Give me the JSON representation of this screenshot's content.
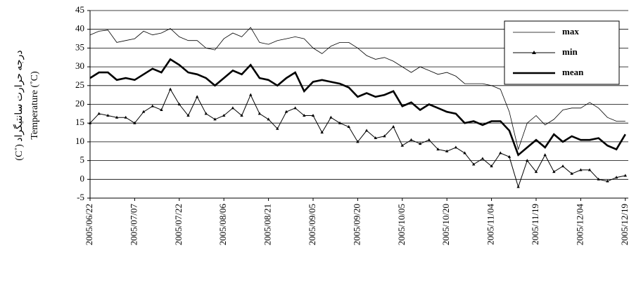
{
  "chart_data": {
    "type": "line",
    "y_label_lines": [
      "درجه حرارت سانتیگراد (˚C)",
      "Temperature (˚C)"
    ],
    "x": [
      "2005/06/22",
      "2005/06/25",
      "2005/06/28",
      "2005/07/01",
      "2005/07/04",
      "2005/07/07",
      "2005/07/10",
      "2005/07/13",
      "2005/07/16",
      "2005/07/19",
      "2005/07/22",
      "2005/07/25",
      "2005/07/28",
      "2005/07/31",
      "2005/08/03",
      "2005/08/06",
      "2005/08/09",
      "2005/08/12",
      "2005/08/15",
      "2005/08/18",
      "2005/08/21",
      "2005/08/24",
      "2005/08/27",
      "2005/08/30",
      "2005/09/02",
      "2005/09/05",
      "2005/09/08",
      "2005/09/11",
      "2005/09/14",
      "2005/09/17",
      "2005/09/20",
      "2005/09/23",
      "2005/09/26",
      "2005/09/29",
      "2005/10/02",
      "2005/10/05",
      "2005/10/08",
      "2005/10/11",
      "2005/10/14",
      "2005/10/17",
      "2005/10/20",
      "2005/10/23",
      "2005/10/26",
      "2005/10/29",
      "2005/11/01",
      "2005/11/04",
      "2005/11/07",
      "2005/11/10",
      "2005/11/13",
      "2005/11/16",
      "2005/11/19",
      "2005/11/22",
      "2005/11/25",
      "2005/11/28",
      "2005/12/01",
      "2005/12/04",
      "2005/12/07",
      "2005/12/10",
      "2005/12/13",
      "2005/12/16",
      "2005/12/19"
    ],
    "series": [
      {
        "name": "max",
        "color": "#000000",
        "values": [
          38.5,
          39.5,
          39.8,
          36.5,
          37,
          37.5,
          39.5,
          38.5,
          39,
          40.2,
          38,
          37,
          37,
          35,
          34.5,
          37.5,
          39,
          38,
          40.5,
          36.5,
          36,
          37,
          37.5,
          38,
          37.5,
          35,
          33.5,
          35.5,
          36.5,
          36.5,
          35,
          33,
          32,
          32.5,
          31.5,
          30,
          28.5,
          30,
          29,
          28,
          28.5,
          27.5,
          25.5,
          25.5,
          25.5,
          25,
          24,
          18,
          8,
          15,
          17,
          14.5,
          16,
          18.5,
          19,
          19,
          20.5,
          19,
          16.5,
          15.5,
          15.5
        ]
      },
      {
        "name": "min",
        "color": "#000000",
        "values": [
          15,
          17.5,
          17,
          16.5,
          16.5,
          15,
          18,
          19.5,
          18.5,
          24,
          20,
          17,
          22,
          17.5,
          16,
          17,
          19,
          17,
          22.5,
          17.5,
          16,
          13.5,
          18,
          19,
          17,
          17,
          12.5,
          16.5,
          15,
          14,
          10,
          13,
          11,
          11.5,
          14,
          9,
          10.5,
          9.5,
          10.5,
          8,
          7.5,
          8.5,
          7,
          4,
          5.5,
          3.5,
          7,
          6,
          -2,
          5,
          2,
          6.5,
          2,
          3.5,
          1.5,
          2.5,
          2.5,
          0,
          -0.5,
          0.5,
          1
        ]
      },
      {
        "name": "mean",
        "color": "#000000",
        "values": [
          27,
          28.5,
          28.5,
          26.5,
          27,
          26.5,
          28,
          29.5,
          28.5,
          32,
          30.5,
          28.5,
          28,
          27,
          25,
          27,
          29,
          28,
          30.5,
          27,
          26.5,
          25,
          27,
          28.5,
          23.5,
          26,
          26.5,
          26,
          25.5,
          24.5,
          22,
          23,
          22,
          22.5,
          23.5,
          19.5,
          20.5,
          18.5,
          20,
          19,
          18,
          17.5,
          15,
          15.5,
          14.5,
          15.5,
          15.5,
          13,
          6.5,
          8.5,
          10.5,
          8.5,
          12,
          10,
          11.5,
          10.5,
          10.5,
          11,
          9,
          8,
          12
        ]
      }
    ],
    "xlim": [
      "2005/06/22",
      "2005/12/20"
    ],
    "xticks": [
      "2005/06/22",
      "2005/07/07",
      "2005/07/22",
      "2005/08/06",
      "2005/08/21",
      "2005/09/05",
      "2005/09/20",
      "2005/10/05",
      "2005/10/20",
      "2005/11/04",
      "2005/11/19",
      "2005/12/04",
      "2005/12/19"
    ],
    "ylim": [
      -5,
      45
    ],
    "yticks": [
      -5,
      0,
      5,
      10,
      15,
      20,
      25,
      30,
      35,
      40,
      45
    ],
    "grid": true,
    "legend": "top-right"
  }
}
